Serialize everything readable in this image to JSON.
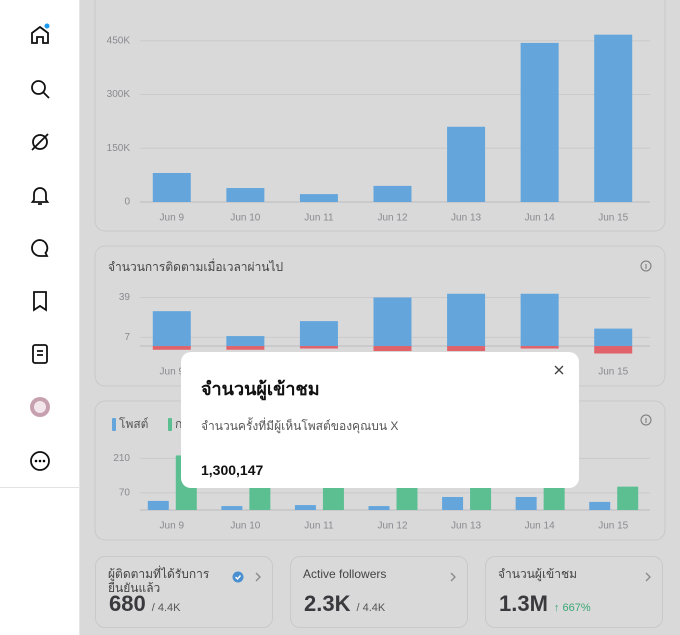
{
  "chart_data": [
    {
      "type": "bar",
      "categories": [
        "Jun 9",
        "Jun 10",
        "Jun 11",
        "Jun 12",
        "Jun 13",
        "Jun 14",
        "Jun 15"
      ],
      "values": [
        81000,
        39000,
        22000,
        45000,
        210000,
        444000,
        467000
      ],
      "color": "#64a6dc",
      "ylim": [
        0,
        480000
      ],
      "yticks": [
        0,
        {
          "value": 150000,
          "label": "150K"
        },
        {
          "value": 300000,
          "label": "300K"
        },
        {
          "value": 450000,
          "label": "450K"
        }
      ],
      "grid": true
    },
    {
      "type": "stacked_bar",
      "title": "จำนวนการติดตามเมื่อเวลาผ่านไป",
      "categories": [
        "Jun 9",
        "Jun 10",
        "Jun 11",
        "Jun 12",
        "Jun 13",
        "Jun 14",
        "Jun 15"
      ],
      "series": [
        {
          "color": "#64a6dc",
          "values": [
            28,
            8,
            20,
            39,
            42,
            42,
            14
          ]
        },
        {
          "color": "#e0636c",
          "values": [
            -3,
            -3,
            -2,
            -4,
            -4,
            -2,
            -6
          ]
        }
      ],
      "ylim": [
        -8,
        45
      ],
      "yticks": [
        7,
        39
      ],
      "grid": true
    },
    {
      "type": "grouped_bar",
      "categories": [
        "Jun 9",
        "Jun 10",
        "Jun 11",
        "Jun 12",
        "Jun 13",
        "Jun 14",
        "Jun 15"
      ],
      "series": [
        {
          "name": "โพสต์",
          "color": "#64a6dc",
          "values": [
            37,
            16,
            20,
            16,
            53,
            53,
            33
          ]
        },
        {
          "name": "การตอบกลับ",
          "color": "#5bbf92",
          "values": [
            222,
            91,
            91,
            91,
            91,
            91,
            95
          ]
        }
      ],
      "ylim": [
        0,
        240
      ],
      "yticks": [
        70,
        210
      ],
      "grid": true
    }
  ],
  "cards": [
    {
      "title": "ผู้ติดตามที่ได้รับการยืนยันแล้ว",
      "value": "680",
      "total": "/ 4.4K"
    },
    {
      "title": "Active followers",
      "value": "2.3K",
      "total": "/ 4.4K"
    },
    {
      "title": "จำนวนผู้เข้าชม",
      "value": "1.3M",
      "change": "↑ 667%"
    }
  ],
  "modal": {
    "title": "จำนวนผู้เข้าชม",
    "description": "จำนวนครั้งที่มีผู้เห็นโพสต์ของคุณบน X",
    "value": "1,300,147"
  }
}
